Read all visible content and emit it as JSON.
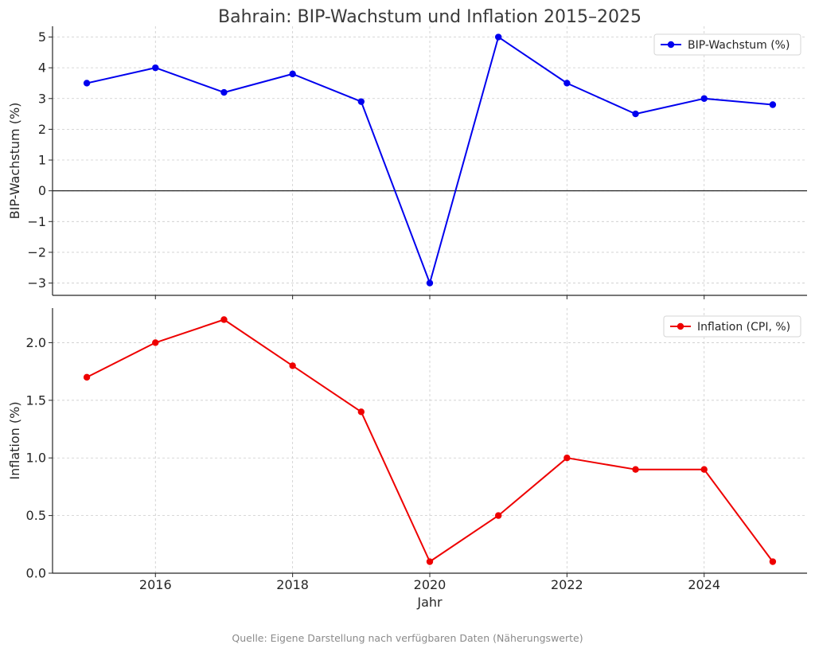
{
  "chart_data": {
    "title": "Bahrain: BIP-Wachstum und Inflation 2015–2025",
    "xlabel": "Jahr",
    "source": "Quelle: Eigene Darstellung nach verfügbaren Daten (Näherungswerte)",
    "x_ticks": [
      2016,
      2018,
      2020,
      2022,
      2024
    ],
    "xlim": [
      2014.5,
      2025.5
    ],
    "panels": [
      {
        "type": "line",
        "ylabel": "BIP-Wachstum (%)",
        "color": "#0000ee",
        "legend_position": "top-right",
        "grid": true,
        "zero_line": true,
        "ylim": [
          -3.4,
          5.35
        ],
        "y_ticks": [
          5,
          4,
          3,
          2,
          1,
          0,
          -1,
          -2,
          -3
        ],
        "y_tick_labels": [
          "5",
          "4",
          "3",
          "2",
          "1",
          "0",
          "−1",
          "−2",
          "−3"
        ],
        "series": [
          {
            "name": "BIP-Wachstum (%)",
            "x": [
              2015,
              2016,
              2017,
              2018,
              2019,
              2020,
              2021,
              2022,
              2023,
              2024,
              2025
            ],
            "values": [
              3.5,
              4.0,
              3.2,
              3.8,
              2.9,
              -3.0,
              5.0,
              3.5,
              2.5,
              3.0,
              2.8
            ]
          }
        ]
      },
      {
        "type": "line",
        "ylabel": "Inflation (%)",
        "color": "#ee0000",
        "legend_position": "top-right",
        "grid": true,
        "zero_line": false,
        "ylim": [
          0.0,
          2.3
        ],
        "y_ticks": [
          2.0,
          1.5,
          1.0,
          0.5,
          0.0
        ],
        "y_tick_labels": [
          "2.0",
          "1.5",
          "1.0",
          "0.5",
          "0.0"
        ],
        "series": [
          {
            "name": "Inflation (CPI, %)",
            "x": [
              2015,
              2016,
              2017,
              2018,
              2019,
              2020,
              2021,
              2022,
              2023,
              2024,
              2025
            ],
            "values": [
              1.7,
              2.0,
              2.2,
              1.8,
              1.4,
              0.1,
              0.5,
              1.0,
              0.9,
              0.9,
              0.1
            ]
          }
        ]
      }
    ]
  }
}
